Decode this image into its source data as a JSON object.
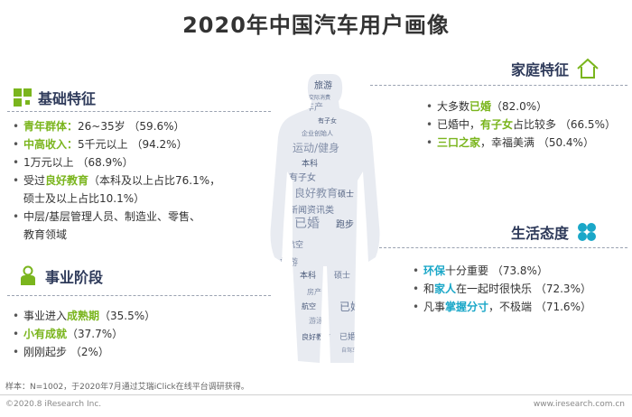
{
  "title": "2020年中国汽车用户画像",
  "basic": {
    "heading": "基础特征",
    "items": [
      {
        "hl": "青年群体：",
        "rest": "26~35岁 （59.6%）"
      },
      {
        "hl": "中高收入：",
        "rest": "5千元以上 （94.2%）"
      },
      {
        "rest": "1万元以上 （68.9%）"
      },
      {
        "pre": "受过",
        "hl": "良好教育",
        "rest": "（本科及以上占比76.1%，"
      },
      {
        "rest": "硕士及以上占比10.1%）"
      },
      {
        "rest": "中层/基层管理人员、制造业、零售、"
      },
      {
        "rest": "教育领域"
      }
    ]
  },
  "career": {
    "heading": "事业阶段",
    "items": [
      {
        "pre": "事业进入",
        "hl": "成熟期",
        "rest": "（35.5%）"
      },
      {
        "hl": "小有成就",
        "rest": "（37.7%）"
      },
      {
        "rest": "刚刚起步 （2%）"
      }
    ]
  },
  "family": {
    "heading": "家庭特征",
    "items": [
      {
        "pre": "大多数",
        "hl": "已婚",
        "rest": "（82.0%）"
      },
      {
        "pre": "已婚中，",
        "hl": "有子女",
        "rest": "占比较多 （66.5%）"
      },
      {
        "hl": "三口之家",
        "rest": "，幸福美满 （50.4%）"
      }
    ]
  },
  "life": {
    "heading": "生活态度",
    "items": [
      {
        "hl": "环保",
        "rest": "十分重要 （73.8%）"
      },
      {
        "pre": "和",
        "hl": "家人",
        "rest": "在一起时很快乐 （72.3%）"
      },
      {
        "pre": "凡事",
        "hl": "掌握分寸",
        "rest": "，不极端 （71.6%）"
      }
    ]
  },
  "wordcloud": [
    "旅游",
    "交际消费",
    "车产",
    "有子女",
    "企业创始人",
    "运动/健身",
    "本科",
    "有子女",
    "良好教育",
    "硕士",
    "新闻资讯类",
    "已婚",
    "跑步",
    "航空",
    "旅游",
    "本科",
    "硕士",
    "房产",
    "航空",
    "已婚",
    "游泳",
    "良好教育",
    "已婚",
    "自驾车"
  ],
  "footer": {
    "note": "样本：N=1002，于2020年7月通过艾瑞iClick在线平台调研获得。",
    "copyright": "©2020.8 iResearch Inc.",
    "site": "www.iresearch.com.cn"
  },
  "colors": {
    "green": "#7ab51d",
    "blue": "#1aa7c8",
    "navy": "#2e3a5a"
  }
}
